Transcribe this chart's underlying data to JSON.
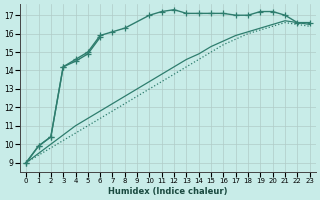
{
  "background_color": "#c8ece8",
  "grid_color": "#b0ccc8",
  "line_color": "#2e7d6e",
  "xlabel": "Humidex (Indice chaleur)",
  "ylabel_ticks": [
    9,
    10,
    11,
    12,
    13,
    14,
    15,
    16,
    17
  ],
  "xlim": [
    -0.5,
    23.5
  ],
  "ylim": [
    8.5,
    17.6
  ],
  "xticks": [
    0,
    1,
    2,
    3,
    4,
    5,
    6,
    7,
    8,
    9,
    10,
    11,
    12,
    13,
    14,
    15,
    16,
    17,
    18,
    19,
    20,
    21,
    22,
    23
  ],
  "series": [
    {
      "x": [
        0,
        1,
        2,
        3,
        4,
        5,
        6,
        7,
        8,
        10,
        11,
        12,
        13,
        14,
        15,
        16,
        17,
        18,
        19,
        20,
        21,
        22,
        23
      ],
      "y": [
        9.0,
        9.9,
        10.4,
        14.2,
        14.6,
        15.0,
        15.9,
        16.1,
        16.3,
        17.0,
        17.2,
        17.3,
        17.1,
        17.1,
        17.1,
        17.1,
        17.0,
        17.0,
        17.2,
        17.2,
        17.0,
        16.6,
        16.6
      ],
      "marker": "+",
      "linestyle": "-",
      "linewidth": 1.0,
      "markersize": 4
    },
    {
      "x": [
        0,
        1,
        2,
        3,
        4,
        5,
        6
      ],
      "y": [
        9.0,
        9.9,
        10.4,
        14.2,
        14.5,
        14.9,
        15.8
      ],
      "marker": "+",
      "linestyle": "-",
      "linewidth": 1.0,
      "markersize": 4
    },
    {
      "x": [
        0,
        1,
        2,
        3,
        4,
        5,
        6,
        7,
        8,
        9,
        10,
        11,
        12,
        13,
        14,
        15,
        16,
        17,
        18,
        19,
        20,
        21,
        22,
        23
      ],
      "y": [
        9.0,
        9.5,
        10.0,
        10.5,
        11.0,
        11.4,
        11.8,
        12.2,
        12.6,
        13.0,
        13.4,
        13.8,
        14.2,
        14.6,
        14.9,
        15.3,
        15.6,
        15.9,
        16.1,
        16.3,
        16.5,
        16.7,
        16.6,
        16.5
      ],
      "marker": null,
      "linestyle": "-",
      "linewidth": 0.9,
      "markersize": 0
    },
    {
      "x": [
        0,
        1,
        2,
        3,
        4,
        5,
        6,
        7,
        8,
        9,
        10,
        11,
        12,
        13,
        14,
        15,
        16,
        17,
        18,
        19,
        20,
        21,
        22,
        23
      ],
      "y": [
        9.0,
        9.4,
        9.8,
        10.2,
        10.6,
        11.0,
        11.4,
        11.8,
        12.2,
        12.6,
        13.0,
        13.4,
        13.8,
        14.2,
        14.6,
        15.0,
        15.4,
        15.7,
        16.0,
        16.2,
        16.4,
        16.6,
        16.5,
        16.4
      ],
      "marker": null,
      "linestyle": "dotted",
      "linewidth": 0.9,
      "markersize": 0
    }
  ]
}
